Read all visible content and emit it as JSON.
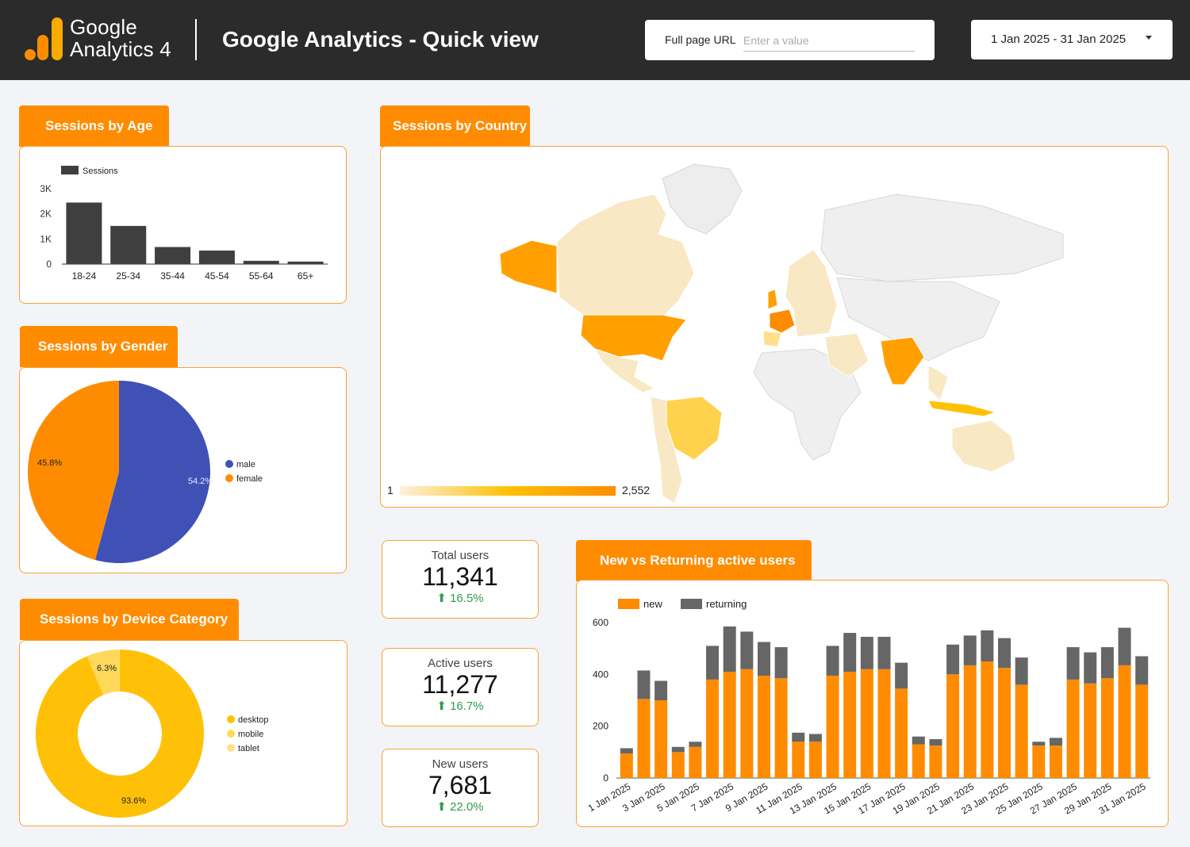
{
  "header": {
    "logo_line1": "Google",
    "logo_line2": "Analytics 4",
    "title": "Google Analytics - Quick view",
    "url_filter_label": "Full page URL",
    "url_filter_placeholder": "Enter a value",
    "date_range": "1 Jan 2025 - 31 Jan 2025"
  },
  "colors": {
    "accent": "#ff8c00",
    "header_bg": "#2b2b2b",
    "bar_dark": "#3f3f3f",
    "male": "#3f51b5",
    "female": "#ff8c00",
    "desktop": "#ffc107",
    "mobile": "#ffd95a",
    "tablet": "#ffe08a",
    "returning": "#666666",
    "positive": "#2e9e4a"
  },
  "panels": {
    "age": {
      "title": "Sessions by Age"
    },
    "country": {
      "title": "Sessions by Country",
      "scale_min": "1",
      "scale_max": "2,552"
    },
    "gender": {
      "title": "Sessions by Gender"
    },
    "device": {
      "title": "Sessions by Device Category"
    },
    "new_returning": {
      "title": "New vs Returning active users"
    }
  },
  "kpis": [
    {
      "label": "Total users",
      "value": "11,341",
      "change": "16.5%",
      "direction": "up"
    },
    {
      "label": "Active users",
      "value": "11,277",
      "change": "16.7%",
      "direction": "up"
    },
    {
      "label": "New users",
      "value": "7,681",
      "change": "22.0%",
      "direction": "up"
    }
  ],
  "chart_data": [
    {
      "id": "age",
      "type": "bar",
      "categories": [
        "18-24",
        "25-34",
        "35-44",
        "45-54",
        "55-64",
        "65+"
      ],
      "series": [
        {
          "name": "Sessions",
          "values": [
            2450,
            1520,
            680,
            540,
            130,
            100
          ]
        }
      ],
      "yticks": [
        "0",
        "1K",
        "2K",
        "3K"
      ],
      "ylim": [
        0,
        3000
      ],
      "legend": "top-left"
    },
    {
      "id": "gender",
      "type": "pie",
      "categories": [
        "male",
        "female"
      ],
      "values": [
        54.2,
        45.8
      ],
      "labels": [
        "54.2%",
        "45.8%"
      ],
      "legend": "right"
    },
    {
      "id": "device",
      "type": "pie",
      "donut": true,
      "categories": [
        "desktop",
        "mobile",
        "tablet"
      ],
      "values": [
        93.6,
        6.3,
        0.1
      ],
      "labels": [
        "93.6%",
        "6.3%",
        ""
      ],
      "legend": "right"
    },
    {
      "id": "new_returning",
      "type": "bar",
      "stacked": true,
      "x": [
        "1 Jan 2025",
        "2 Jan 2025",
        "3 Jan 2025",
        "4 Jan 2025",
        "5 Jan 2025",
        "6 Jan 2025",
        "7 Jan 2025",
        "8 Jan 2025",
        "9 Jan 2025",
        "10 Jan 2025",
        "11 Jan 2025",
        "12 Jan 2025",
        "13 Jan 2025",
        "14 Jan 2025",
        "15 Jan 2025",
        "16 Jan 2025",
        "17 Jan 2025",
        "18 Jan 2025",
        "19 Jan 2025",
        "20 Jan 2025",
        "21 Jan 2025",
        "22 Jan 2025",
        "23 Jan 2025",
        "24 Jan 2025",
        "25 Jan 2025",
        "26 Jan 2025",
        "27 Jan 2025",
        "28 Jan 2025",
        "29 Jan 2025",
        "30 Jan 2025",
        "31 Jan 2025"
      ],
      "xtick_labels": [
        "1 Jan 2025",
        "3 Jan 2025",
        "5 Jan 2025",
        "7 Jan 2025",
        "9 Jan 2025",
        "11 Jan 2025",
        "13 Jan 2025",
        "15 Jan 2025",
        "17 Jan 2025",
        "19 Jan 2025",
        "21 Jan 2025",
        "23 Jan 2025",
        "25 Jan 2025",
        "27 Jan 2025",
        "29 Jan 2025",
        "31 Jan 2025"
      ],
      "series": [
        {
          "name": "new",
          "values": [
            95,
            305,
            300,
            100,
            120,
            380,
            410,
            420,
            395,
            385,
            140,
            140,
            395,
            410,
            420,
            420,
            345,
            130,
            125,
            400,
            435,
            450,
            425,
            360,
            125,
            125,
            380,
            365,
            385,
            435,
            360
          ]
        },
        {
          "name": "returning",
          "values": [
            20,
            110,
            75,
            20,
            20,
            130,
            175,
            145,
            130,
            120,
            35,
            30,
            115,
            150,
            125,
            125,
            100,
            30,
            25,
            115,
            115,
            120,
            115,
            105,
            15,
            30,
            125,
            120,
            120,
            145,
            110
          ]
        }
      ],
      "yticks": [
        "0",
        "200",
        "400",
        "600"
      ],
      "ylim": [
        0,
        600
      ],
      "legend": "top-left"
    }
  ]
}
